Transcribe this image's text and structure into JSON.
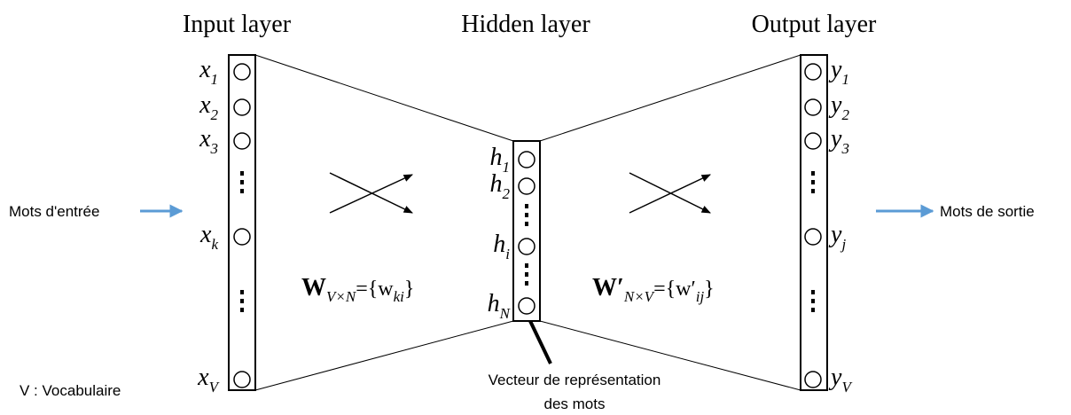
{
  "titles": {
    "input": "Input layer",
    "hidden": "Hidden layer",
    "output": "Output layer"
  },
  "input_nodes": [
    {
      "base": "x",
      "sub": "1"
    },
    {
      "base": "x",
      "sub": "2"
    },
    {
      "base": "x",
      "sub": "3"
    },
    {
      "base": "x",
      "sub": "k"
    },
    {
      "base": "x",
      "sub": "V"
    }
  ],
  "hidden_nodes": [
    {
      "base": "h",
      "sub": "1"
    },
    {
      "base": "h",
      "sub": "2"
    },
    {
      "base": "h",
      "sub": "i"
    },
    {
      "base": "h",
      "sub": "N"
    }
  ],
  "output_nodes": [
    {
      "base": "y",
      "sub": "1"
    },
    {
      "base": "y",
      "sub": "2"
    },
    {
      "base": "y",
      "sub": "3"
    },
    {
      "base": "y",
      "sub": "j"
    },
    {
      "base": "y",
      "sub": "V"
    }
  ],
  "weights_in": {
    "symbol": "W",
    "sub": "V×N",
    "eq": "={w",
    "sub2": "ki",
    "close": "}"
  },
  "weights_out": {
    "symbol": "W′",
    "sub": "N×V",
    "eq": "={w′",
    "sub2": "ij",
    "close": "}"
  },
  "input_label": "Mots d'entrée",
  "output_label": "Mots de sortie",
  "vocab_note": "V : Vocabulaire",
  "hidden_caption": [
    "Vecteur de représentation",
    "des mots"
  ]
}
